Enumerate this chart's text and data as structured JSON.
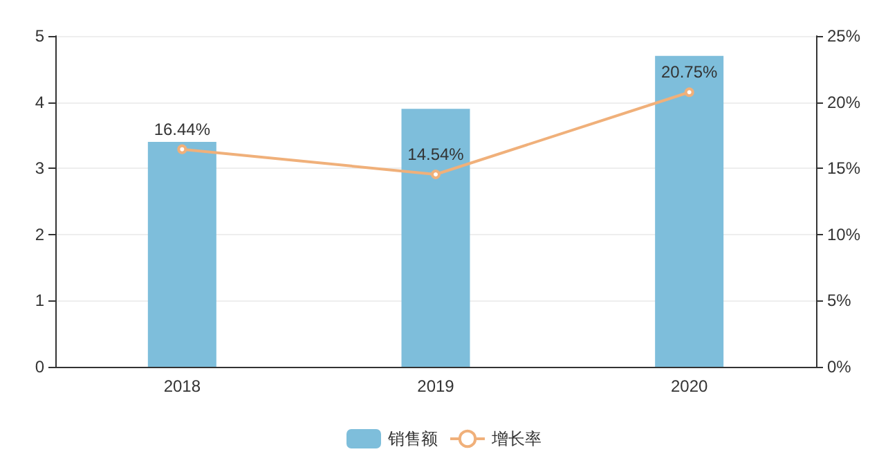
{
  "chart_data": {
    "type": "bar",
    "categories": [
      "2018",
      "2019",
      "2020"
    ],
    "series": [
      {
        "name": "销售额",
        "color": "#7ebedb",
        "values": [
          3.4,
          3.9,
          4.7
        ]
      },
      {
        "name": "增长率",
        "type": "line",
        "axis": "y2",
        "color": "#f0b07a",
        "values": [
          16.44,
          14.54,
          20.75
        ],
        "value_labels": [
          "16.44%",
          "14.54%",
          "20.75%"
        ],
        "marker": "circle"
      }
    ],
    "ylim": [
      0,
      5
    ],
    "yticks": [
      0,
      1,
      2,
      3,
      4,
      5
    ],
    "y2lim": [
      0,
      25
    ],
    "y2ticks": [
      {
        "value": 0,
        "label": "0%"
      },
      {
        "value": 5,
        "label": "5%"
      },
      {
        "value": 10,
        "label": "10%"
      },
      {
        "value": 15,
        "label": "15%"
      },
      {
        "value": 20,
        "label": "20%"
      },
      {
        "value": 25,
        "label": "25%"
      }
    ],
    "grid": "y",
    "legend": "bottom"
  }
}
